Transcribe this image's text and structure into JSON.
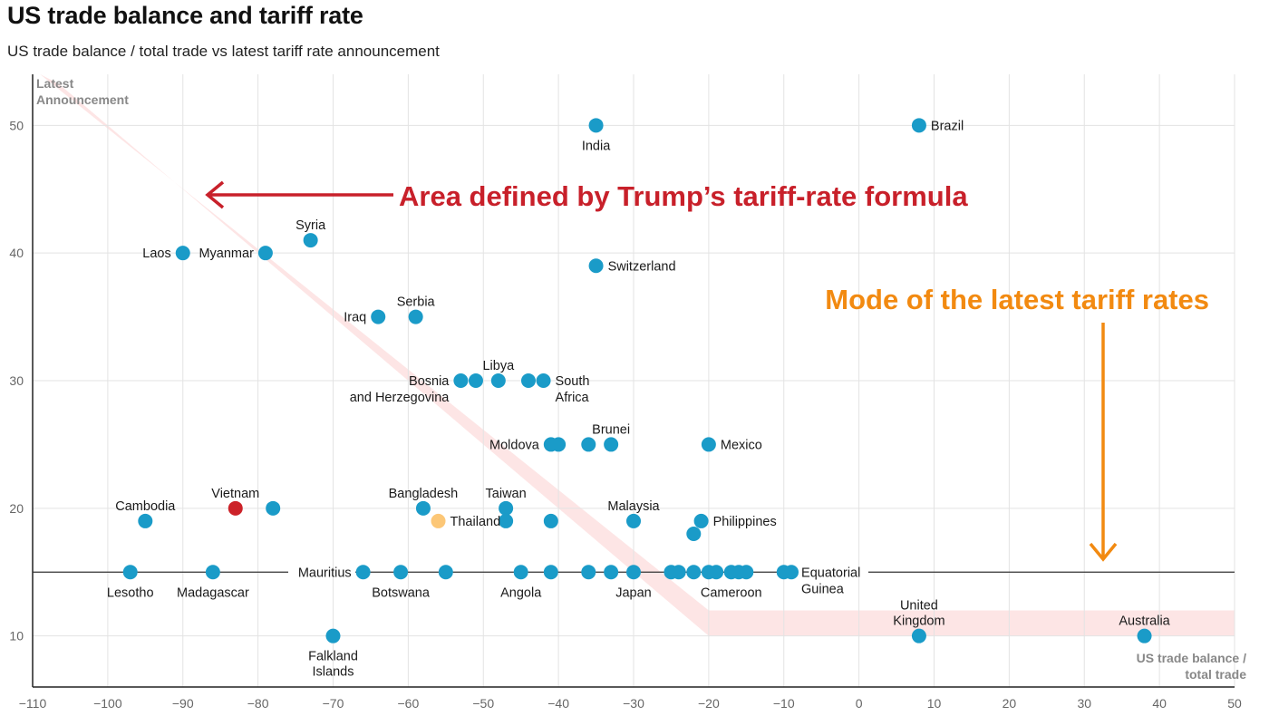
{
  "header": {
    "title": "US trade balance and tariff rate",
    "subtitle": "US trade balance / total trade vs latest tariff rate announcement"
  },
  "chart_data": {
    "type": "scatter",
    "title": "US trade balance and tariff rate",
    "subtitle": "US trade balance / total trade vs latest tariff rate announcement",
    "xlabel": [
      "US trade balance /",
      "total trade"
    ],
    "ylabel": [
      "Latest",
      "Announcement"
    ],
    "xlim": [
      -110,
      50
    ],
    "ylim": [
      6,
      54
    ],
    "xticks": [
      -110,
      -100,
      -90,
      -80,
      -70,
      -60,
      -50,
      -40,
      -30,
      -20,
      -10,
      0,
      10,
      20,
      30,
      40,
      50
    ],
    "yticks": [
      10,
      20,
      30,
      40,
      50
    ],
    "grid": "vertical and horizontal",
    "reference_line_y": 15,
    "colors": {
      "default": "#1a9bc8",
      "highlight": "#cc2229",
      "secondary": "#fcc777",
      "band": "#fde0e0",
      "annotation_red": "#c8202a",
      "annotation_orange": "#f28a11"
    },
    "points": [
      {
        "x": -35,
        "y": 50,
        "label": "India"
      },
      {
        "x": 8,
        "y": 50,
        "label": "Brazil"
      },
      {
        "x": -73,
        "y": 41,
        "label": "Syria"
      },
      {
        "x": -90,
        "y": 40,
        "label": "Laos"
      },
      {
        "x": -79,
        "y": 40,
        "label": "Myanmar"
      },
      {
        "x": -35,
        "y": 39,
        "label": "Switzerland"
      },
      {
        "x": -64,
        "y": 35,
        "label": "Iraq"
      },
      {
        "x": -59,
        "y": 35,
        "label": "Serbia"
      },
      {
        "x": -53,
        "y": 30,
        "label": [
          "Bosnia",
          "and Herzegovina"
        ]
      },
      {
        "x": -51,
        "y": 30
      },
      {
        "x": -48,
        "y": 30,
        "label": "Libya"
      },
      {
        "x": -44,
        "y": 30
      },
      {
        "x": -42,
        "y": 30,
        "label": [
          "South",
          "Africa"
        ]
      },
      {
        "x": -41,
        "y": 25,
        "label": "Moldova"
      },
      {
        "x": -40,
        "y": 25
      },
      {
        "x": -36,
        "y": 25
      },
      {
        "x": -33,
        "y": 25,
        "label": "Brunei"
      },
      {
        "x": -20,
        "y": 25,
        "label": "Mexico"
      },
      {
        "x": -95,
        "y": 19,
        "label": "Cambodia"
      },
      {
        "x": -83,
        "y": 20,
        "label": "Vietnam",
        "color": "highlight"
      },
      {
        "x": -78,
        "y": 20
      },
      {
        "x": -58,
        "y": 20,
        "label": "Bangladesh"
      },
      {
        "x": -56,
        "y": 19,
        "label": "Thailand",
        "color": "secondary"
      },
      {
        "x": -47,
        "y": 20,
        "label": "Taiwan"
      },
      {
        "x": -47,
        "y": 19
      },
      {
        "x": -41,
        "y": 19
      },
      {
        "x": -30,
        "y": 19,
        "label": "Malaysia"
      },
      {
        "x": -21,
        "y": 19,
        "label": "Philippines"
      },
      {
        "x": -22,
        "y": 18
      },
      {
        "x": -97,
        "y": 15,
        "label": "Lesotho"
      },
      {
        "x": -86,
        "y": 15,
        "label": "Madagascar"
      },
      {
        "x": -66,
        "y": 15,
        "label": "Mauritius"
      },
      {
        "x": -61,
        "y": 15,
        "label": "Botswana"
      },
      {
        "x": -55,
        "y": 15
      },
      {
        "x": -45,
        "y": 15,
        "label": "Angola"
      },
      {
        "x": -41,
        "y": 15
      },
      {
        "x": -36,
        "y": 15
      },
      {
        "x": -33,
        "y": 15
      },
      {
        "x": -30,
        "y": 15,
        "label": "Japan"
      },
      {
        "x": -25,
        "y": 15
      },
      {
        "x": -24,
        "y": 15
      },
      {
        "x": -22,
        "y": 15
      },
      {
        "x": -20,
        "y": 15
      },
      {
        "x": -19,
        "y": 15
      },
      {
        "x": -17,
        "y": 15,
        "label": "Cameroon"
      },
      {
        "x": -16,
        "y": 15
      },
      {
        "x": -15,
        "y": 15
      },
      {
        "x": -10,
        "y": 15
      },
      {
        "x": -9,
        "y": 15,
        "label": [
          "Equatorial",
          "Guinea"
        ]
      },
      {
        "x": -70,
        "y": 10,
        "label": [
          "Falkland",
          "Islands"
        ]
      },
      {
        "x": 8,
        "y": 10,
        "label": [
          "United",
          "Kingdom"
        ]
      },
      {
        "x": 38,
        "y": 10,
        "label": "Australia"
      }
    ],
    "annotations": [
      {
        "text": "Area defined by Trump’s tariff-rate formula",
        "color": "annotation_red"
      },
      {
        "text": "Mode of the latest tariff rates",
        "color": "annotation_orange"
      }
    ]
  }
}
